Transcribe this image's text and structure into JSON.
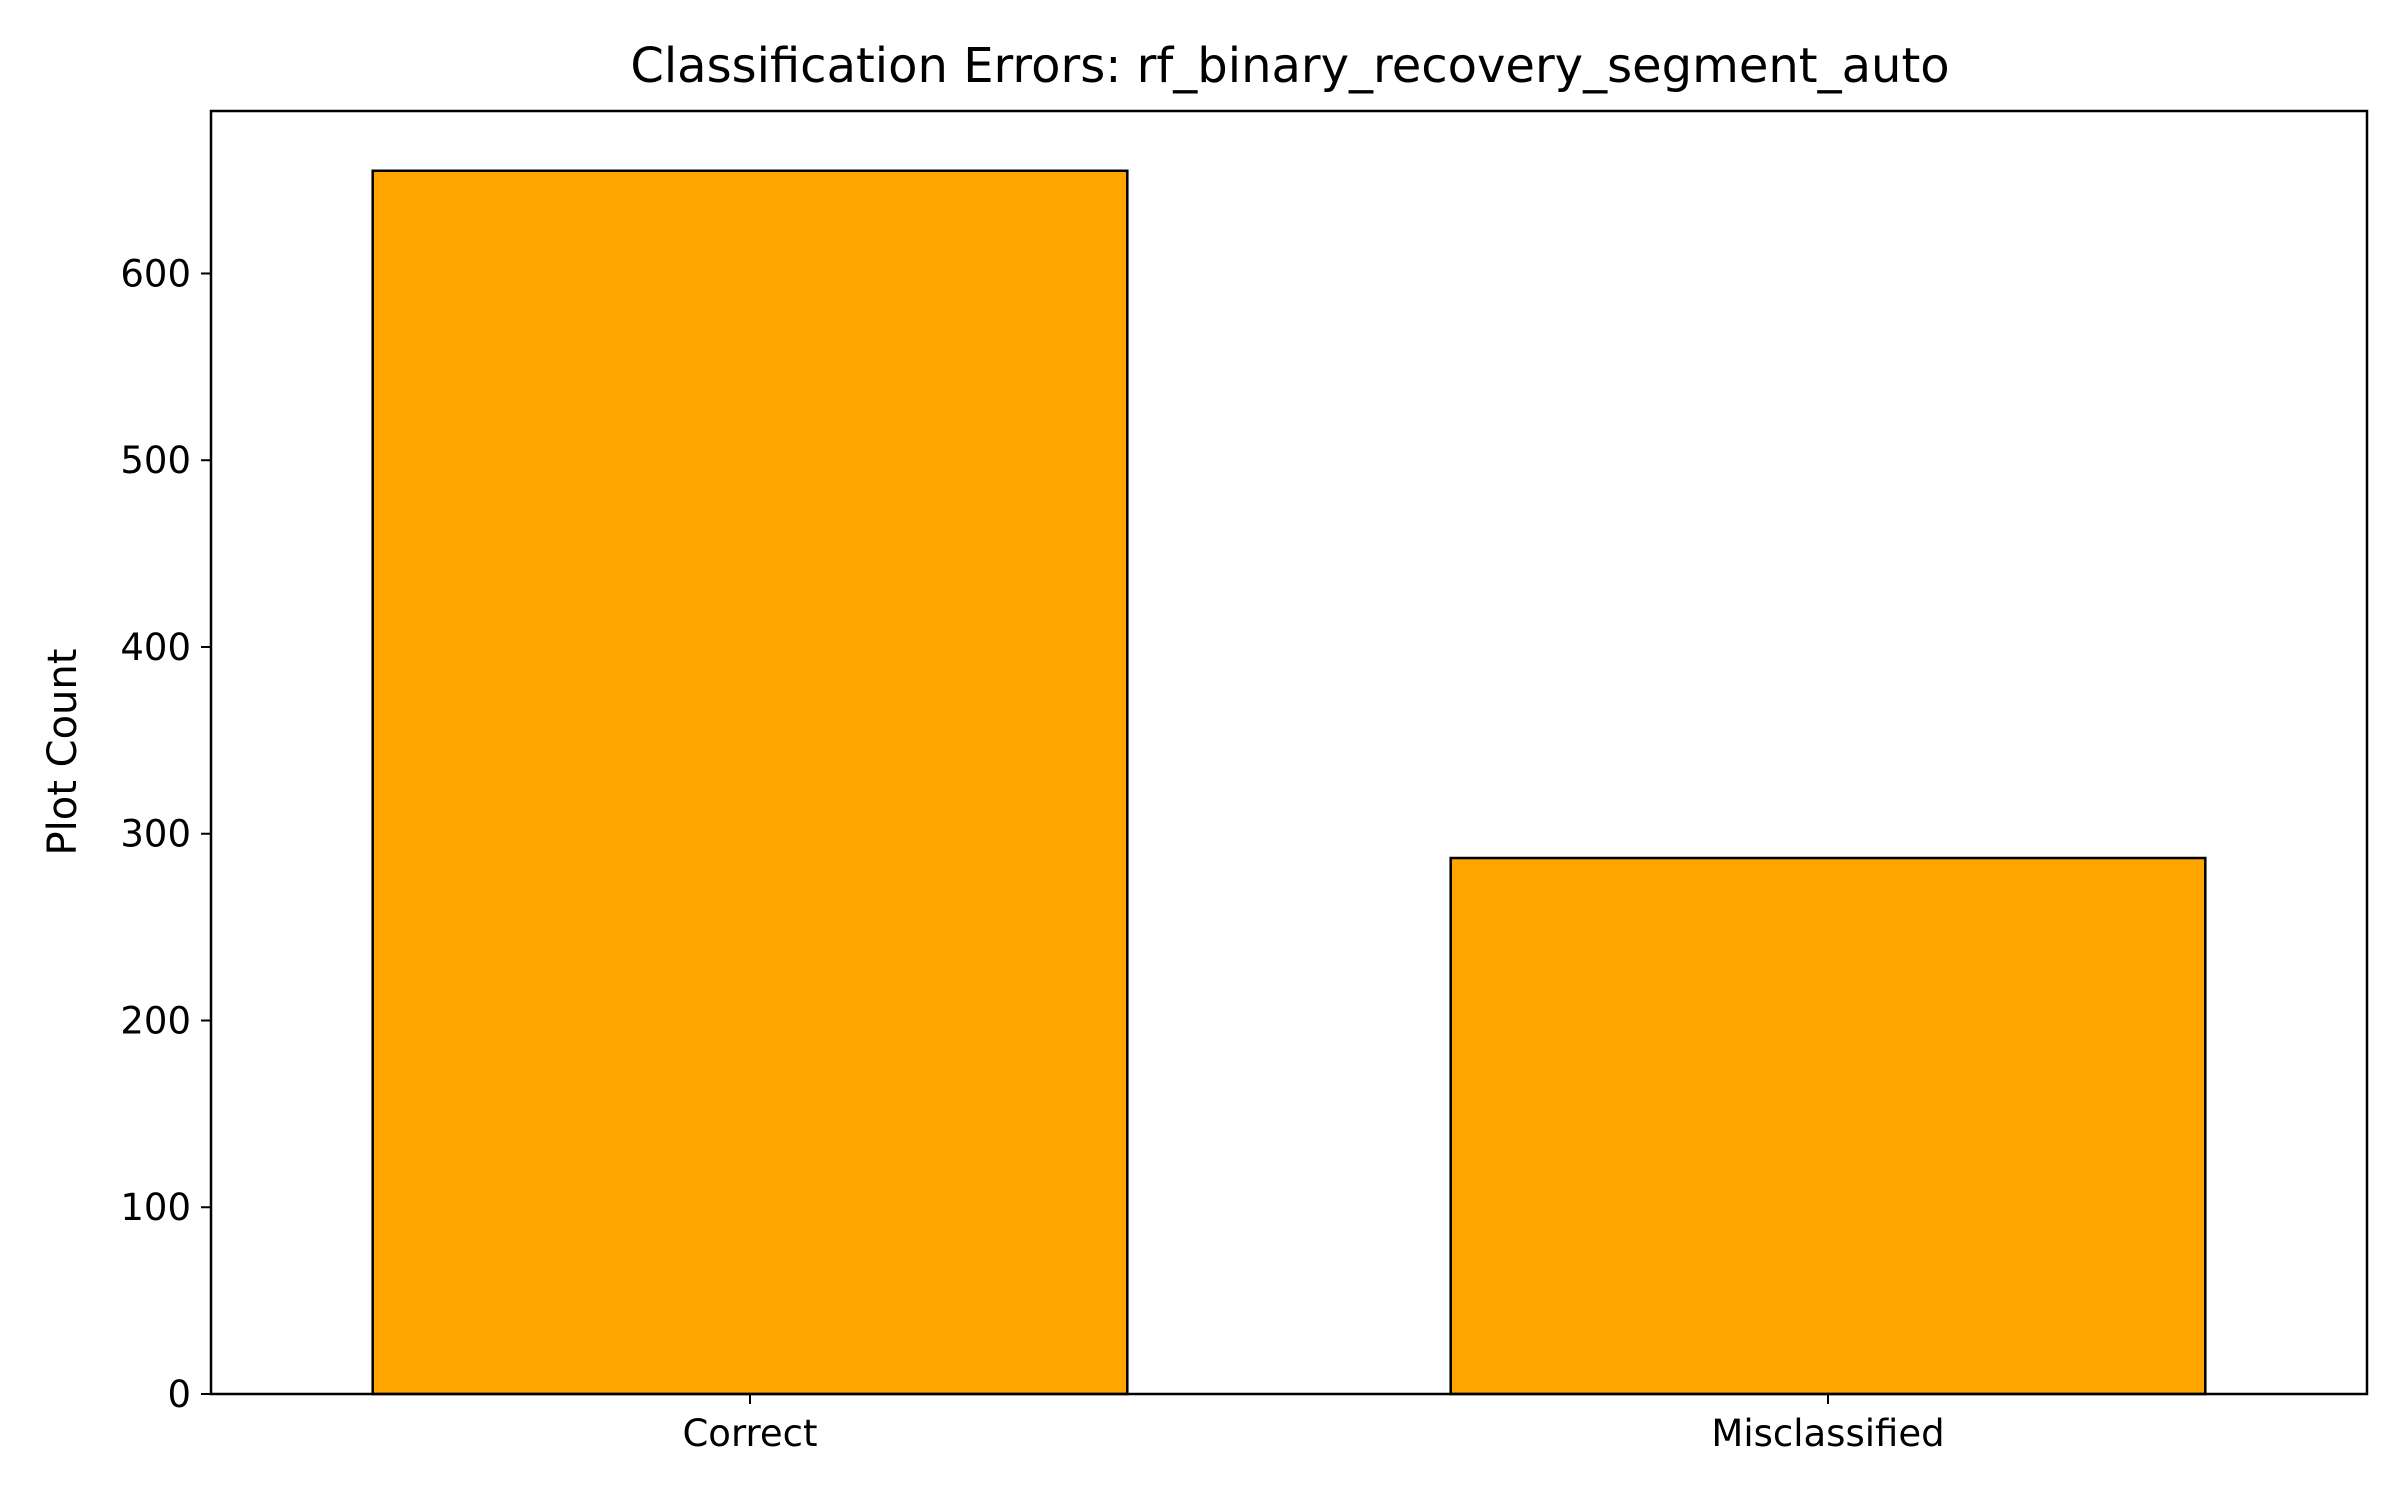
{
  "chart_data": {
    "type": "bar",
    "title": "Classification Errors: rf_binary_recovery_segment_auto",
    "xlabel": "",
    "ylabel": "Plot Count",
    "categories": [
      "Correct",
      "Misclassified"
    ],
    "values": [
      655,
      287
    ],
    "ylim": [
      0,
      687
    ],
    "yticks": [
      0,
      100,
      200,
      300,
      400,
      500,
      600
    ],
    "grid": false,
    "legend": "none",
    "colors": {
      "bar_fill": "#FFA500",
      "bar_edge": "#000000",
      "axes": "#000000",
      "background": "#FFFFFF"
    }
  }
}
